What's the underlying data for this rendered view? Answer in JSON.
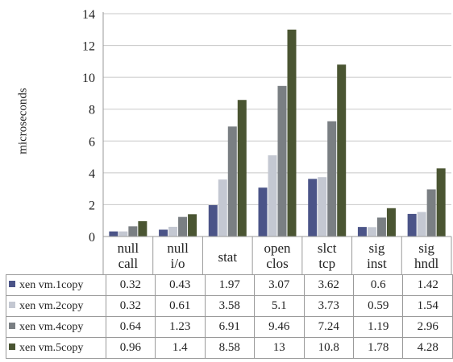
{
  "chart_data": {
    "type": "bar",
    "ylabel": "microseconds",
    "xlabel": "",
    "ylim": [
      0,
      14
    ],
    "yticks": [
      0,
      2,
      4,
      6,
      8,
      10,
      12,
      14
    ],
    "grid": true,
    "legend": "data-table-below",
    "categories": [
      [
        "null",
        "call"
      ],
      [
        "null",
        "i/o"
      ],
      [
        "stat"
      ],
      [
        "open",
        "clos"
      ],
      [
        "slct",
        "tcp"
      ],
      [
        "sig",
        "inst"
      ],
      [
        "sig",
        "hndl"
      ]
    ],
    "series": [
      {
        "name": "xen vm.1copy",
        "color": "#4b5488",
        "values": [
          0.32,
          0.43,
          1.97,
          3.07,
          3.62,
          0.6,
          1.42
        ]
      },
      {
        "name": "xen vm.2copy",
        "color": "#c4c8d2",
        "values": [
          0.32,
          0.61,
          3.58,
          5.1,
          3.73,
          0.59,
          1.54
        ]
      },
      {
        "name": "xen vm.4copy",
        "color": "#7a7f83",
        "values": [
          0.64,
          1.23,
          6.91,
          9.46,
          7.24,
          1.19,
          2.96
        ]
      },
      {
        "name": "xen vm.5copy",
        "color": "#4a5532",
        "values": [
          0.96,
          1.4,
          8.58,
          13,
          10.8,
          1.78,
          4.28
        ]
      }
    ]
  }
}
